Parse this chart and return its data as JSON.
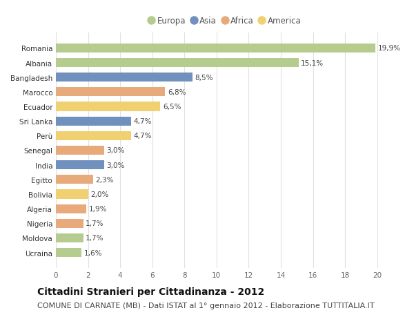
{
  "countries": [
    "Romania",
    "Albania",
    "Bangladesh",
    "Marocco",
    "Ecuador",
    "Sri Lanka",
    "Perù",
    "Senegal",
    "India",
    "Egitto",
    "Bolivia",
    "Algeria",
    "Nigeria",
    "Moldova",
    "Ucraina"
  ],
  "values": [
    19.9,
    15.1,
    8.5,
    6.8,
    6.5,
    4.7,
    4.7,
    3.0,
    3.0,
    2.3,
    2.0,
    1.9,
    1.7,
    1.7,
    1.6
  ],
  "labels": [
    "19,9%",
    "15,1%",
    "8,5%",
    "6,8%",
    "6,5%",
    "4,7%",
    "4,7%",
    "3,0%",
    "3,0%",
    "2,3%",
    "2,0%",
    "1,9%",
    "1,7%",
    "1,7%",
    "1,6%"
  ],
  "regions": [
    "Europa",
    "Europa",
    "Asia",
    "Africa",
    "America",
    "Asia",
    "America",
    "Africa",
    "Asia",
    "Africa",
    "America",
    "Africa",
    "Africa",
    "Europa",
    "Europa"
  ],
  "colors": {
    "Europa": "#b5cc8e",
    "Asia": "#7090be",
    "Africa": "#e8aa7a",
    "America": "#f0d070"
  },
  "legend_order": [
    "Europa",
    "Asia",
    "Africa",
    "America"
  ],
  "xlim": [
    0,
    21
  ],
  "xticks": [
    0,
    2,
    4,
    6,
    8,
    10,
    12,
    14,
    16,
    18,
    20
  ],
  "bg_color": "#ffffff",
  "plot_bg_color": "#ffffff",
  "grid_color": "#e0e0e0",
  "title": "Cittadini Stranieri per Cittadinanza - 2012",
  "subtitle": "COMUNE DI CARNATE (MB) - Dati ISTAT al 1° gennaio 2012 - Elaborazione TUTTITALIA.IT",
  "title_fontsize": 10,
  "subtitle_fontsize": 8,
  "label_fontsize": 7.5,
  "tick_fontsize": 7.5,
  "legend_fontsize": 8.5
}
